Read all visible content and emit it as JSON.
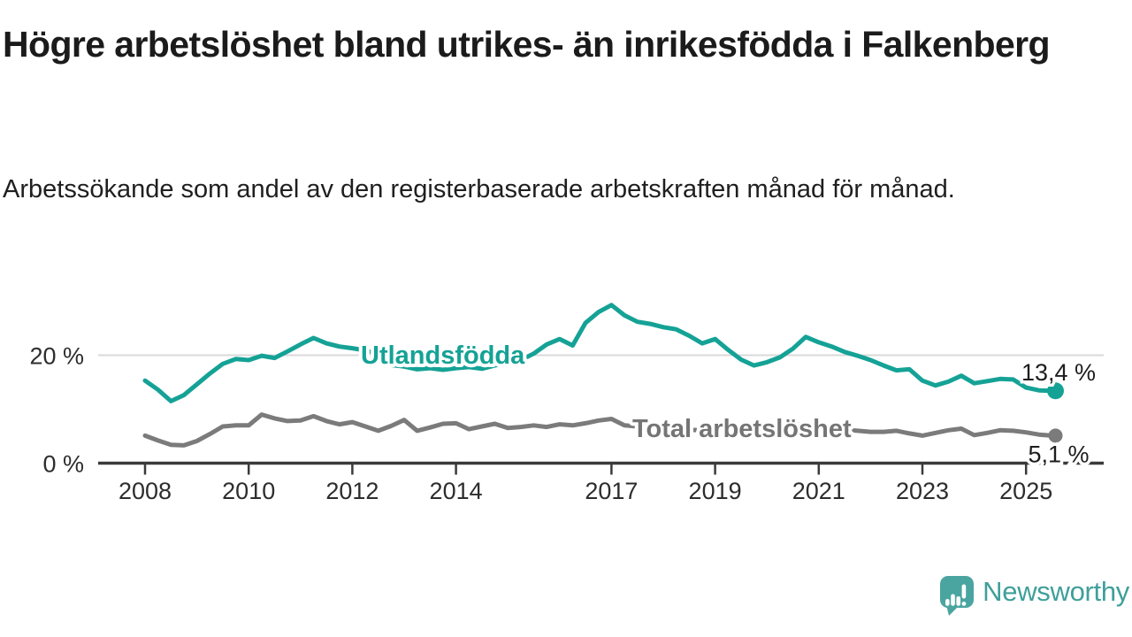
{
  "header": {
    "title": "Högre arbetslöshet bland utrikes- än inrikesfödda i Falkenberg",
    "subtitle": "Arbetssökande som andel av den registerbaserade arbetskraften månad för månad."
  },
  "chart_data": {
    "type": "line",
    "title": "Högre arbetslöshet bland utrikes- än inrikesfödda i Falkenberg",
    "subtitle": "Arbetssökande som andel av den registerbaserade arbetskraften månad för månad.",
    "x_unit": "year",
    "x_start": 2008.0,
    "x_step": 0.25,
    "x_end": 2025.5,
    "x_ticks": [
      {
        "year": 2008,
        "label": "2008"
      },
      {
        "year": 2010,
        "label": "2010"
      },
      {
        "year": 2012,
        "label": "2012"
      },
      {
        "year": 2014,
        "label": "2014"
      },
      {
        "year": 2017,
        "label": "2017"
      },
      {
        "year": 2019,
        "label": "2019"
      },
      {
        "year": 2021,
        "label": "2021"
      },
      {
        "year": 2023,
        "label": "2023"
      },
      {
        "year": 2025,
        "label": "2025"
      }
    ],
    "y_ticks": [
      {
        "value": 0,
        "label": "0 %"
      },
      {
        "value": 20,
        "label": "20 %"
      }
    ],
    "ylim": [
      0,
      33
    ],
    "grid": "horizontal line at 20 % only",
    "legend": "inline labels on lines",
    "colors": {
      "foreign_born": "#15A296",
      "total": "#7B7B7B",
      "gridline": "#D9D9D9",
      "axis": "#3A3A3A",
      "axis_text": "#2D2D2D",
      "end_label_text": "#1D1D1D"
    },
    "series": [
      {
        "name": "Utlandsfödda",
        "color": "#15A296",
        "end_label": "13,4 %",
        "end_value": 13.4,
        "values": [
          15.3,
          13.6,
          11.5,
          12.6,
          14.6,
          16.6,
          18.4,
          19.3,
          19.1,
          19.9,
          19.5,
          20.7,
          22.0,
          23.2,
          22.2,
          21.6,
          21.3,
          20.9,
          20.2,
          18.2,
          17.9,
          17.4,
          17.6,
          17.3,
          17.6,
          17.8,
          17.5,
          18.1,
          18.6,
          19.1,
          20.3,
          22.0,
          23.0,
          21.8,
          26.0,
          28.0,
          29.3,
          27.4,
          26.2,
          25.8,
          25.2,
          24.8,
          23.6,
          22.2,
          23.0,
          21.0,
          19.2,
          18.1,
          18.7,
          19.6,
          21.2,
          23.4,
          22.4,
          21.6,
          20.6,
          19.9,
          19.1,
          18.1,
          17.2,
          17.4,
          15.3,
          14.4,
          15.1,
          16.2,
          14.8,
          15.2,
          15.6,
          15.5,
          14.0,
          13.5,
          13.4
        ]
      },
      {
        "name": "Total arbetslöshet",
        "color": "#7B7B7B",
        "end_label": "5,1 %",
        "end_value": 5.1,
        "values": [
          5.1,
          4.2,
          3.4,
          3.3,
          4.1,
          5.4,
          6.8,
          7.0,
          7.0,
          9.0,
          8.3,
          7.8,
          7.9,
          8.7,
          7.8,
          7.2,
          7.6,
          6.8,
          6.0,
          6.9,
          8.0,
          6.0,
          6.6,
          7.3,
          7.4,
          6.3,
          6.8,
          7.3,
          6.5,
          6.7,
          7.0,
          6.7,
          7.2,
          7.0,
          7.4,
          7.9,
          8.2,
          7.0,
          6.8,
          6.5,
          6.6,
          6.3,
          6.1,
          6.2,
          6.4,
          6.0,
          5.8,
          6.0,
          6.3,
          6.9,
          7.3,
          7.1,
          6.8,
          6.5,
          6.2,
          6.0,
          5.8,
          5.8,
          6.0,
          5.5,
          5.1,
          5.6,
          6.1,
          6.4,
          5.2,
          5.6,
          6.1,
          6.0,
          5.7,
          5.3,
          5.1
        ]
      }
    ]
  },
  "footer": {
    "brand": "Newsworthy",
    "brand_icon": "newsworthy-speech-bubble-bar-chart-icon",
    "brand_icon_color": "#4AA5A0",
    "brand_text_color": "#3F9F9A"
  }
}
